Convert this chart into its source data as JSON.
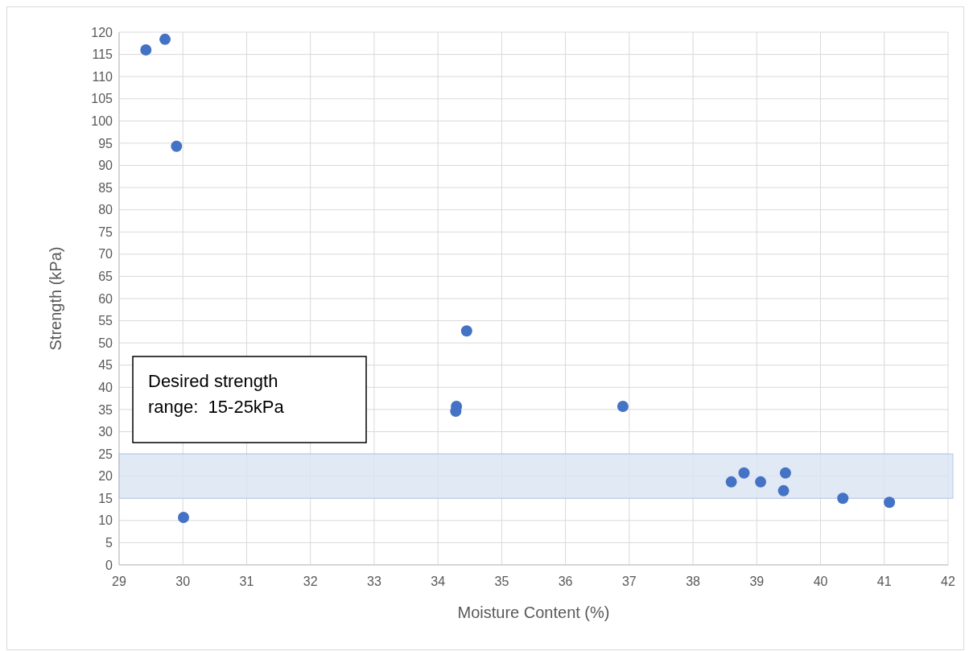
{
  "chart_data": {
    "type": "scatter",
    "xlabel": "Moisture Content (%)",
    "ylabel": "Strength (kPa)",
    "x": [
      29.42,
      29.72,
      29.9,
      30.01,
      34.45,
      34.29,
      34.28,
      36.9,
      38.6,
      38.8,
      39.06,
      39.45,
      39.42,
      40.35,
      41.08
    ],
    "series": [
      {
        "color": "#4472c4",
        "values": [
          116,
          118.4,
          94.3,
          10.7,
          52.7,
          35.7,
          34.6,
          35.7,
          18.7,
          20.7,
          18.7,
          20.7,
          16.7,
          15,
          14.1
        ]
      }
    ],
    "xlim": [
      29,
      42
    ],
    "xticks": [
      29,
      30,
      31,
      32,
      33,
      34,
      35,
      36,
      37,
      38,
      39,
      40,
      41,
      42
    ],
    "ylim": [
      0,
      120
    ],
    "yticks": [
      0,
      5,
      10,
      15,
      20,
      25,
      30,
      35,
      40,
      45,
      50,
      55,
      60,
      65,
      70,
      75,
      80,
      85,
      90,
      95,
      100,
      105,
      110,
      115,
      120
    ],
    "bands": [
      {
        "axis": "y",
        "from": 15,
        "to": 25,
        "color": "#dae3f3"
      }
    ],
    "annotations": [
      "Desired strength range:  15-25kPa"
    ],
    "grid": true,
    "marker": "circle"
  }
}
